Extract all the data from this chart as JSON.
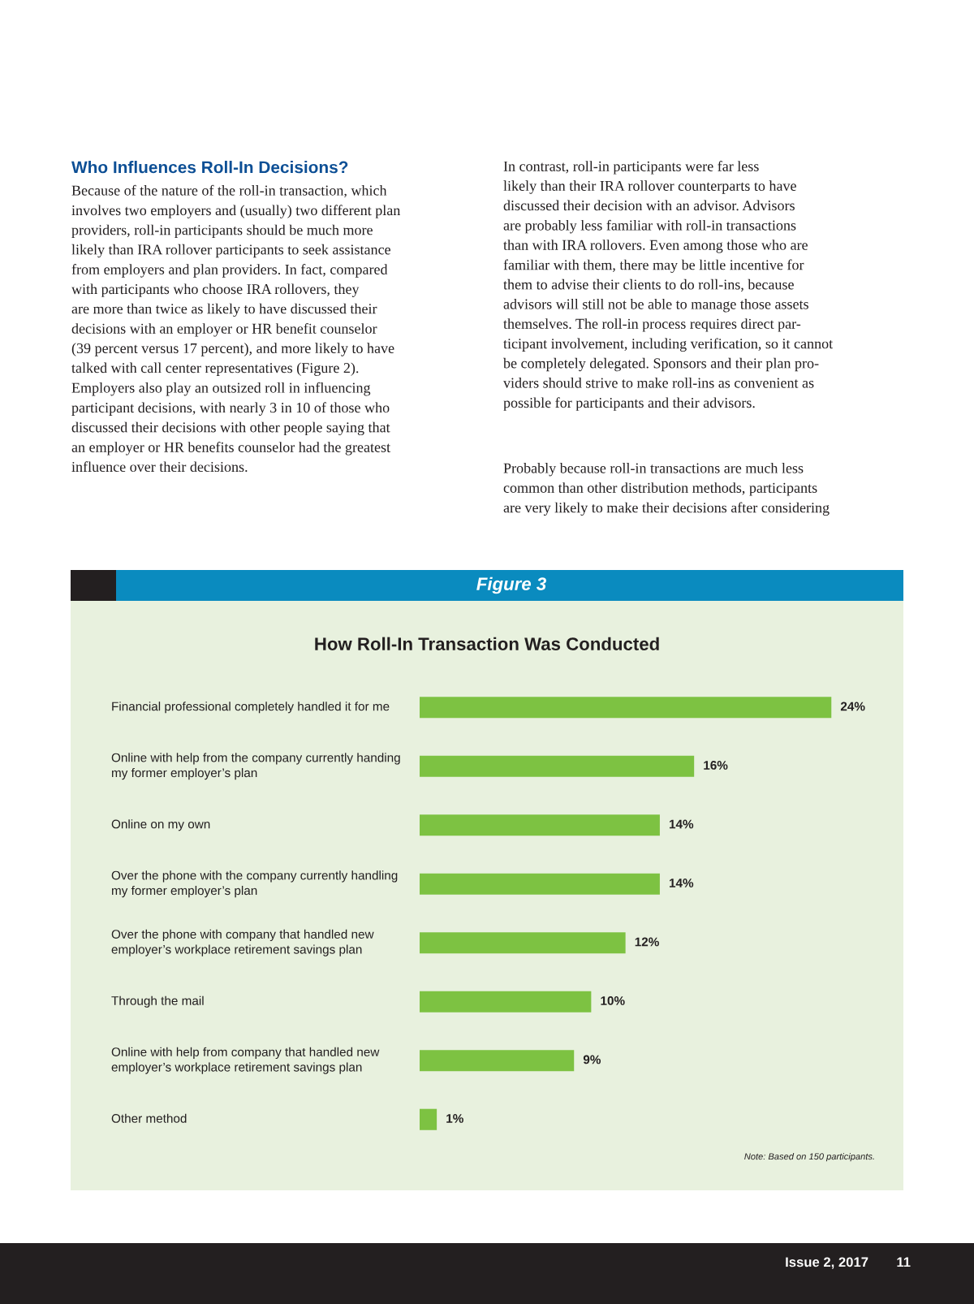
{
  "chart_data": {
    "type": "bar",
    "orientation": "horizontal",
    "title": "How Roll-In Transaction Was Conducted",
    "subtitle": "Figure 3",
    "categories": [
      "Financial professional completely handled it for me",
      "Online with help from the company currently handing\nmy former employer’s plan",
      "Online on my own",
      "Over the phone with the company currently handling\nmy former employer’s plan",
      "Over the phone with company that handled new\nemployer’s workplace retirement savings plan",
      "Through the mail",
      "Online with help from company that handled new\nemployer’s workplace retirement savings plan",
      "Other method"
    ],
    "values": [
      24,
      16,
      14,
      14,
      12,
      10,
      9,
      1
    ],
    "value_labels": [
      "24%",
      "16%",
      "14%",
      "14%",
      "12%",
      "10%",
      "9%",
      "1%"
    ],
    "color": "#7dc242",
    "annotations": [
      "Who Influences Roll-In Decisions?",
      "Because of the nature of the roll-in transaction, which\ninvolves two employers and (usually) two different plan\nproviders, roll-in participants should be much more\nlikely than IRA rollover participants to seek assistance\nfrom employers and plan providers. In fact, compared\nwith participants who choose IRA rollovers, they\nare more than twice as likely to have discussed their\ndecisions with an employer or HR benefit counselor\n(39 percent versus 17 percent), and more likely to have\ntalked with call center representatives (Figure 2).\nEmployers also play an outsized roll in influencing\nparticipant decisions, with nearly 3 in 10 of those who\ndiscussed their decisions with other people saying that\nan employer or HR benefits counselor had the greatest\ninfluence over their decisions.",
      "In contrast, roll-in participants were far less\nlikely than their IRA rollover counterparts to have\ndiscussed their decision with an advisor. Advisors\nare probably less familiar with roll-in transactions\nthan with IRA rollovers. Even among those who are\nfamiliar with them, there may be little incentive for\nthem to advise their clients to do roll-ins, because\nadvisors will still not be able to manage those assets\nthemselves. The roll-in process requires direct par-\nticipant involvement, including verification, so it cannot\nbe completely delegated. Sponsors and their plan pro-\nviders should strive to make roll-ins as convenient as\npossible for participants and their advisors.",
      "Probably because roll-in transactions are much less\ncommon than other distribution methods, participants\nare very likely to make their decisions after considering",
      "Note: Based on 150 participants.",
      "Issue 2, 2017",
      "11"
    ]
  }
}
